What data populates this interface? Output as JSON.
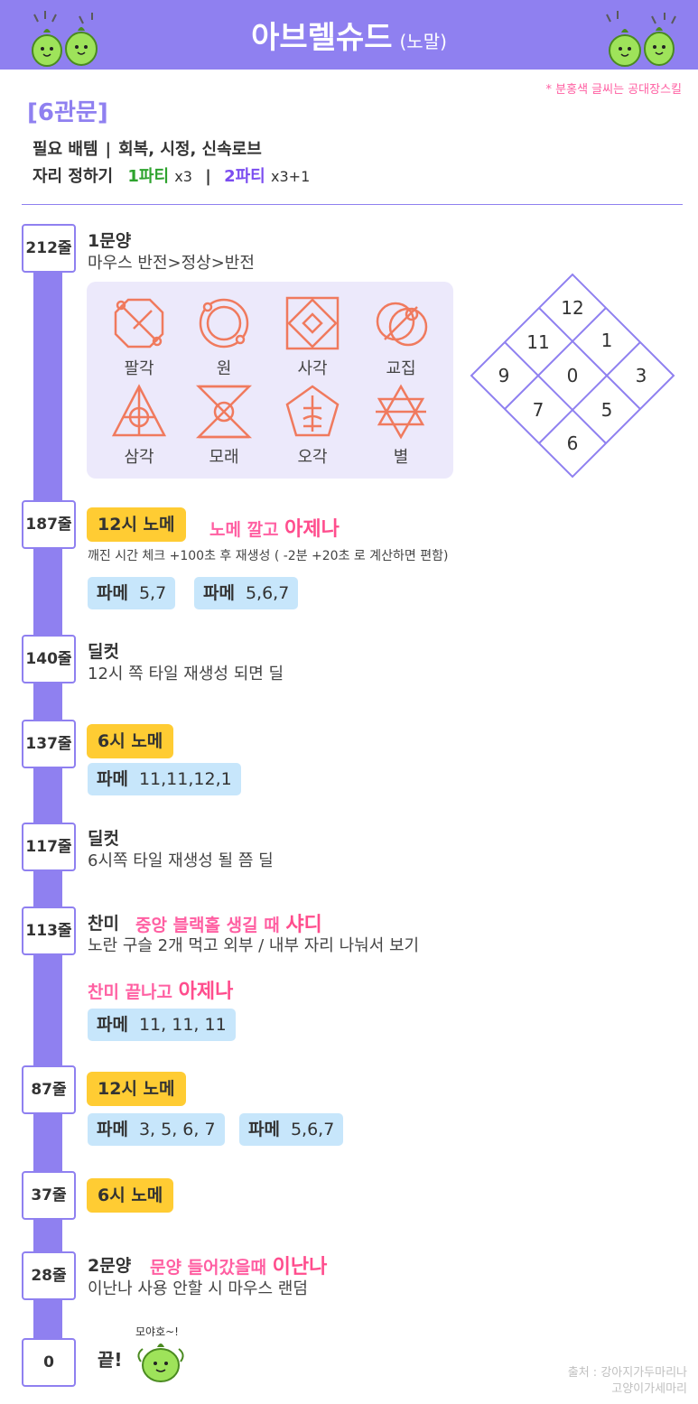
{
  "header": {
    "title": "아브렐슈드",
    "subtitle": "(노말)"
  },
  "note": "* 분홍색 글씨는 공대장스킬",
  "gate": "[6관문]",
  "info": {
    "items_label": "필요 배템",
    "items_value": "회복, 시정, 신속로브",
    "seat_label": "자리 정하기",
    "party1": "1파티",
    "party1_mult": "x3",
    "party2": "2파티",
    "party2_mult": "x3+1",
    "separator": "|"
  },
  "symbols": [
    {
      "label": "팔각",
      "icon": "octagon-icon"
    },
    {
      "label": "원",
      "icon": "circle-icon"
    },
    {
      "label": "사각",
      "icon": "square-icon"
    },
    {
      "label": "교집",
      "icon": "intersection-icon"
    },
    {
      "label": "삼각",
      "icon": "triangle-icon"
    },
    {
      "label": "모래",
      "icon": "hourglass-icon"
    },
    {
      "label": "오각",
      "icon": "pentagon-icon"
    },
    {
      "label": "별",
      "icon": "star-icon"
    }
  ],
  "grid_numbers": [
    "12",
    "11",
    "1",
    "9",
    "0",
    "3",
    "7",
    "5",
    "6"
  ],
  "steps": {
    "s212": {
      "line": "212줄",
      "title": "1문양",
      "desc": "마우스 반전>정상>반전"
    },
    "s187": {
      "line": "187줄",
      "tag": "12시 노메",
      "pink_a": "노메 깔고 ",
      "pink_b": "아제나",
      "desc": "깨진 시간 체크 +100초 후 재생성 ( -2분 +20초 로 계산하면 편함)",
      "pame1_label": "파메",
      "pame1_value": "5,7",
      "pame2_label": "파메",
      "pame2_value": "5,6,7"
    },
    "s140": {
      "line": "140줄",
      "title": "딜컷",
      "desc": "12시 쪽 타일 재생성 되면 딜"
    },
    "s137": {
      "line": "137줄",
      "tag": "6시 노메",
      "pame1_label": "파메",
      "pame1_value": "11,11,12,1"
    },
    "s117": {
      "line": "117줄",
      "title": "딜컷",
      "desc": "6시쪽 타일 재생성 될 쯤 딜"
    },
    "s113": {
      "line": "113줄",
      "title": "찬미",
      "pink_a": "중앙 블랙홀 생길 때 ",
      "pink_b": "샤디",
      "desc": "노란 구슬 2개 먹고 외부 / 내부 자리 나눠서 보기",
      "pink2_a": "찬미 끝나고 ",
      "pink2_b": "아제나",
      "pame1_label": "파메",
      "pame1_value": "11, 11, 11"
    },
    "s87": {
      "line": "87줄",
      "tag": "12시 노메",
      "pame1_label": "파메",
      "pame1_value": "3, 5, 6, 7",
      "pame2_label": "파메",
      "pame2_value": "5,6,7"
    },
    "s37": {
      "line": "37줄",
      "tag": "6시 노메"
    },
    "s28": {
      "line": "28줄",
      "title": "2문양",
      "pink_a": "문양 들어갔을때 ",
      "pink_b": "이난나",
      "desc": "이난나 사용 안할 시 마우스 랜덤"
    },
    "s0": {
      "line": "0",
      "end": "끝!",
      "bubble": "모야호~!"
    }
  },
  "credit": {
    "line1": "출처 : 강아지가두마리나",
    "line2": "고양이가세마리"
  },
  "colors": {
    "purple": "#8f80f0",
    "pink": "#ff5fa2",
    "yellow": "#ffcc33",
    "blue": "#c7e6fb",
    "symbol": "#f07a5e"
  }
}
